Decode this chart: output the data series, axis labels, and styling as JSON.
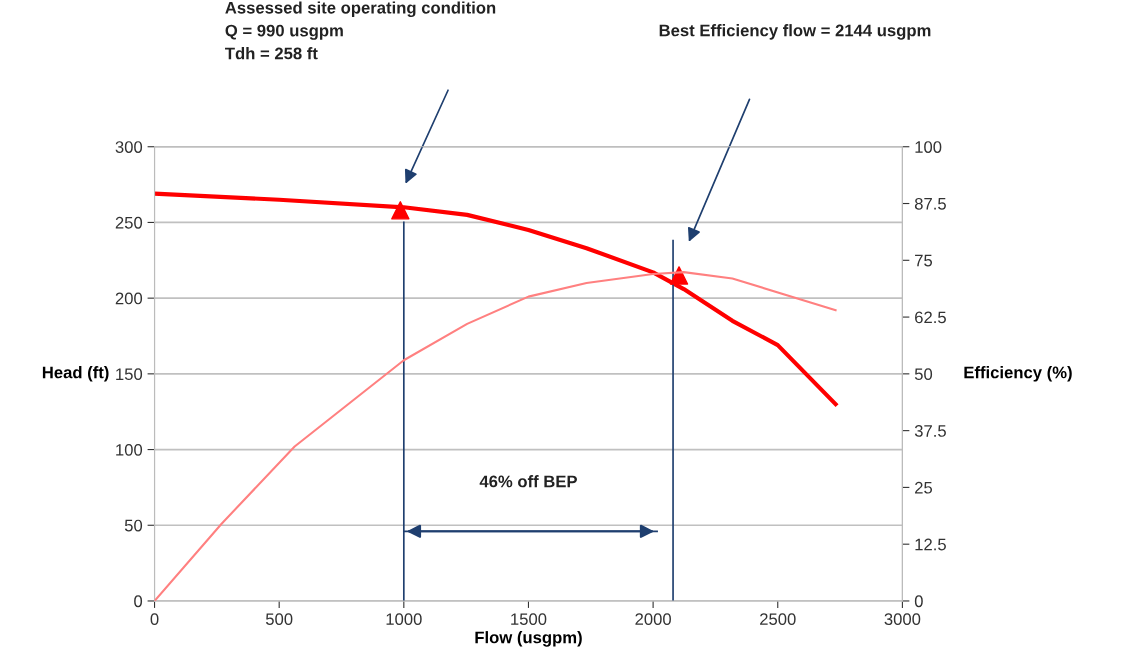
{
  "chart_data": {
    "type": "line",
    "xlabel": "Flow (usgpm)",
    "ylabel": "Head (ft)",
    "y2label": "Efficiency (%)",
    "xlim": [
      0,
      3000
    ],
    "xticks": [
      0,
      500,
      1000,
      1500,
      2000,
      2500,
      3000
    ],
    "ylim": [
      0,
      300
    ],
    "yticks": [
      0,
      50,
      100,
      150,
      200,
      250,
      300
    ],
    "y2lim": [
      0,
      100
    ],
    "y2ticks": [
      0,
      12.5,
      25,
      37.5,
      50,
      62.5,
      75,
      87.5,
      100
    ],
    "grid": "y",
    "series": [
      {
        "color": "#ff0000",
        "x": [
          0,
          500,
          1000,
          1254,
          1500,
          1733,
          2000,
          2123,
          2318,
          2500,
          2732
        ],
        "values": [
          269,
          265,
          260,
          255,
          245,
          233,
          217,
          206,
          185,
          169,
          130
        ]
      },
      {
        "axis": "y2",
        "color": "#ff8080",
        "x": [
          0,
          269,
          562,
          1000,
          1254,
          1500,
          1733,
          2000,
          2123,
          2318,
          2732
        ],
        "values": [
          0,
          17,
          34,
          53,
          61,
          67,
          70,
          72,
          72.4,
          71,
          64
        ]
      },
      {
        "type": "scatter",
        "marker": "triangle",
        "color": "#ff0000",
        "x": [
          986,
          2104
        ],
        "values": [
          258,
          215
        ]
      },
      {
        "color": "#1f3f6f",
        "x": [
          1000,
          1000
        ],
        "values": [
          0,
          250
        ]
      },
      {
        "color": "#1f3f6f",
        "x": [
          2080,
          2080
        ],
        "values": [
          0,
          238
        ]
      },
      {
        "color": "#1f3f6f",
        "x": [
          1000,
          2016
        ],
        "values": [
          46,
          46
        ]
      }
    ],
    "annotations": [
      "Assessed site operating condition\nQ = 990 usgpm\nTdh = 258 ft",
      "Best Efficiency flow = 2144 usgpm",
      "46% off BEP"
    ]
  }
}
